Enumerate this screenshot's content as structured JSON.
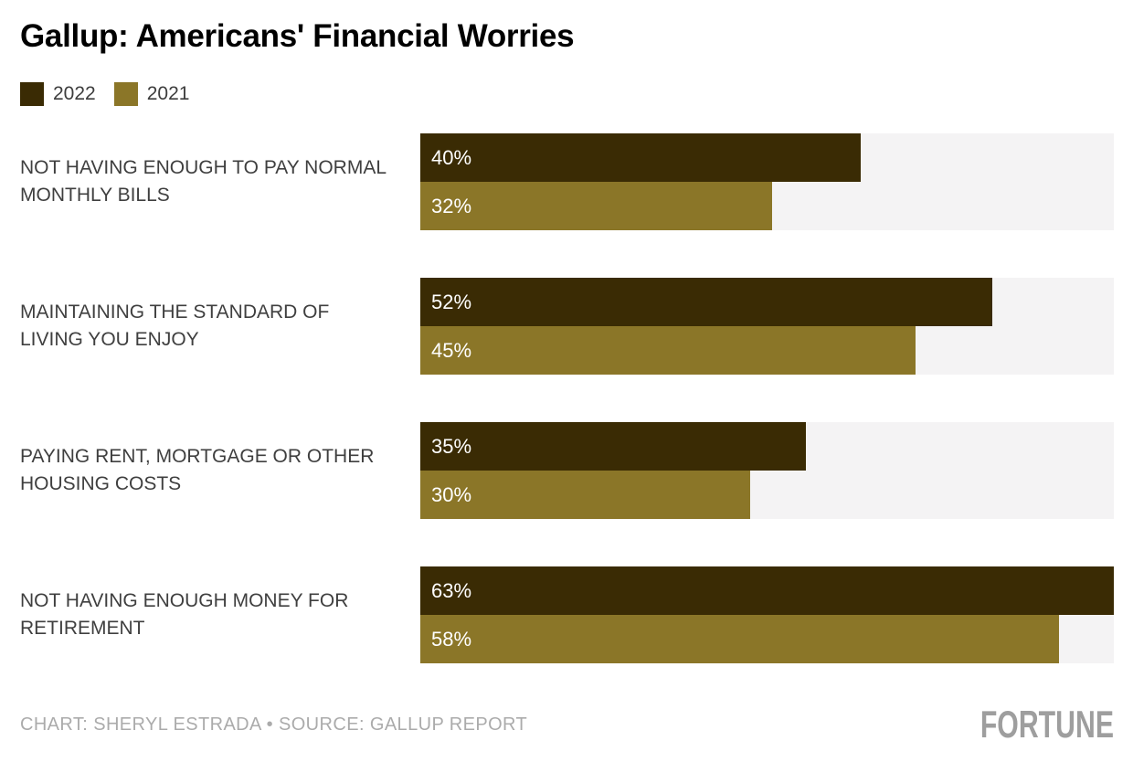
{
  "title": "Gallup: Americans' Financial Worries",
  "legend": {
    "items": [
      {
        "label": "2022",
        "color": "#3a2b04"
      },
      {
        "label": "2021",
        "color": "#8b7628"
      }
    ]
  },
  "colors": {
    "bar_2022": "#3a2b04",
    "bar_2021": "#8b7628",
    "track": "#f4f3f4"
  },
  "footer": {
    "credit": "CHART: SHERYL ESTRADA • SOURCE: GALLUP REPORT",
    "brand": "FORTUNE"
  },
  "chart_data": {
    "type": "bar",
    "orientation": "horizontal",
    "title": "Gallup: Americans' Financial Worries",
    "categories": [
      "NOT HAVING ENOUGH TO PAY NORMAL MONTHLY BILLS",
      "MAINTAINING THE STANDARD OF LIVING YOU ENJOY",
      "PAYING RENT, MORTGAGE OR OTHER HOUSING COSTS",
      "NOT HAVING ENOUGH MONEY FOR RETIREMENT"
    ],
    "series": [
      {
        "name": "2022",
        "values": [
          40,
          52,
          35,
          63
        ],
        "color": "#3a2b04"
      },
      {
        "name": "2021",
        "values": [
          32,
          45,
          30,
          58
        ],
        "color": "#8b7628"
      }
    ],
    "value_suffix": "%",
    "xlim": [
      0,
      63
    ],
    "legend_position": "top-left",
    "grid": false
  }
}
